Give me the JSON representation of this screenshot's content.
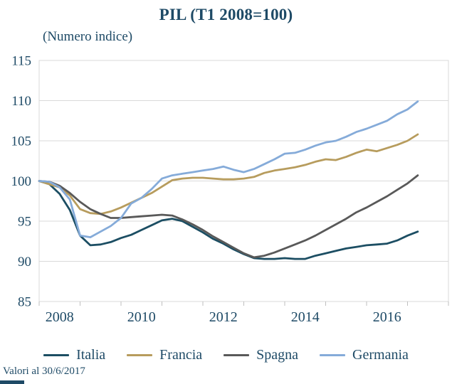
{
  "page": {
    "footnote": "Valori al 30/6/2017"
  },
  "colors": {
    "text": "#1E4A66",
    "grid": "#D9D9D9",
    "tick": "#BFBFBF",
    "italia": "#1C4E63",
    "francia": "#B79C5D",
    "spagna": "#595959",
    "germania": "#85ABD9"
  },
  "chart_data": {
    "type": "line",
    "title": "PIL (T1 2008=100)",
    "subtitle": "(Numero indice)",
    "x_unit": "quarterly, T1 2008 to T2 2017",
    "x_tick_labels": [
      "2008",
      "2010",
      "2012",
      "2014",
      "2016"
    ],
    "ylim": [
      85,
      115
    ],
    "y_ticks": [
      85,
      90,
      95,
      100,
      105,
      110,
      115
    ],
    "grid": true,
    "legend_position": "bottom",
    "series": [
      {
        "name": "Italia",
        "color": "#1C4E63",
        "values": [
          100.0,
          99.6,
          98.4,
          96.4,
          93.2,
          92.0,
          92.1,
          92.4,
          92.9,
          93.3,
          93.9,
          94.5,
          95.1,
          95.3,
          95.0,
          94.3,
          93.6,
          92.8,
          92.2,
          91.5,
          90.9,
          90.4,
          90.3,
          90.3,
          90.4,
          90.3,
          90.3,
          90.7,
          91.0,
          91.3,
          91.6,
          91.8,
          92.0,
          92.1,
          92.2,
          92.6,
          93.2,
          93.7
        ]
      },
      {
        "name": "Francia",
        "color": "#B79C5D",
        "values": [
          100.0,
          99.6,
          99.2,
          98.2,
          96.5,
          96.0,
          95.9,
          96.2,
          96.7,
          97.3,
          97.9,
          98.5,
          99.3,
          100.1,
          100.3,
          100.4,
          100.4,
          100.3,
          100.2,
          100.2,
          100.3,
          100.5,
          101.0,
          101.3,
          101.5,
          101.7,
          102.0,
          102.4,
          102.7,
          102.6,
          103.0,
          103.5,
          103.9,
          103.7,
          104.1,
          104.5,
          105.0,
          105.8
        ]
      },
      {
        "name": "Spagna",
        "color": "#595959",
        "values": [
          100.0,
          99.9,
          99.4,
          98.5,
          97.4,
          96.5,
          95.9,
          95.4,
          95.4,
          95.5,
          95.6,
          95.7,
          95.8,
          95.7,
          95.2,
          94.6,
          93.9,
          93.1,
          92.4,
          91.7,
          91.0,
          90.5,
          90.7,
          91.1,
          91.6,
          92.1,
          92.6,
          93.2,
          93.9,
          94.6,
          95.3,
          96.1,
          96.7,
          97.4,
          98.1,
          98.9,
          99.7,
          100.7
        ]
      },
      {
        "name": "Germania",
        "color": "#85ABD9",
        "values": [
          100.0,
          99.9,
          99.2,
          97.7,
          93.2,
          93.0,
          93.7,
          94.4,
          95.4,
          97.2,
          97.9,
          99.0,
          100.3,
          100.7,
          100.9,
          101.1,
          101.3,
          101.5,
          101.8,
          101.4,
          101.1,
          101.5,
          102.1,
          102.7,
          103.4,
          103.5,
          103.9,
          104.4,
          104.8,
          105.0,
          105.5,
          106.1,
          106.5,
          107.0,
          107.5,
          108.3,
          108.9,
          109.9
        ]
      }
    ]
  }
}
